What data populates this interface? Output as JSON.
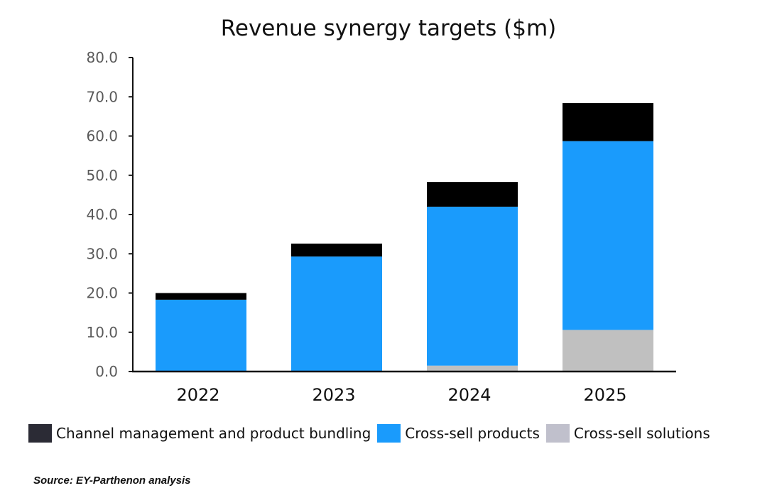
{
  "chart_data": {
    "type": "bar",
    "stacked": true,
    "title": "Revenue synergy targets ($m)",
    "xlabel": "",
    "ylabel": "",
    "ylim": [
      0,
      80
    ],
    "yticks": [
      "0.0",
      "10.0",
      "20.0",
      "30.0",
      "40.0",
      "50.0",
      "60.0",
      "70.0",
      "80.0"
    ],
    "ytick_values": [
      0,
      10,
      20,
      30,
      40,
      50,
      60,
      70,
      80
    ],
    "categories": [
      "2022",
      "2023",
      "2024",
      "2025"
    ],
    "grid": false,
    "legend_position": "bottom",
    "series": [
      {
        "name": "Cross-sell solutions",
        "color": "#c0c0c0",
        "legend_color": "#c0c0cc",
        "values": [
          0.0,
          0.0,
          1.5,
          10.6
        ]
      },
      {
        "name": "Cross-sell products",
        "color": "#1a9bfc",
        "legend_color": "#1a9bfc",
        "values": [
          18.3,
          29.3,
          40.5,
          48.1
        ]
      },
      {
        "name": "Channel management and product bundling",
        "color": "#000000",
        "legend_color": "#2b2b35",
        "values": [
          1.7,
          3.3,
          6.3,
          9.7
        ]
      }
    ],
    "legend_order": [
      2,
      1,
      0
    ]
  },
  "source": "Source: EY-Parthenon analysis"
}
